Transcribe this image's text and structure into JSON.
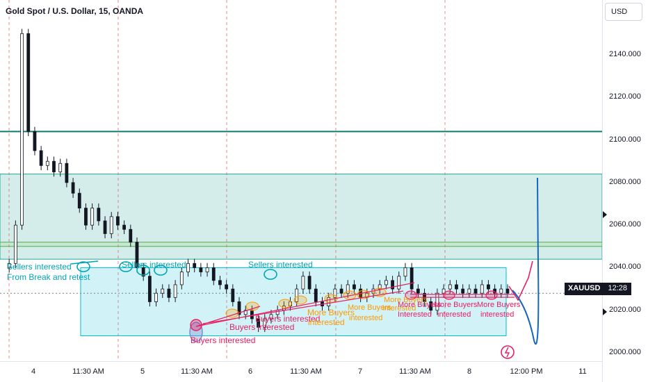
{
  "header": {
    "title": "Gold Spot / U.S. Dollar, 15, OANDA",
    "currency": "USD"
  },
  "badge": {
    "symbol": "XAUUSD",
    "value": "12:28"
  },
  "colors": {
    "candle": "#131722",
    "zone_green": "#26a69a",
    "zone_blue": "#00bcd4",
    "cyan": "#00a5b5",
    "red": "#e91e63",
    "orange": "#ff9800",
    "blue": "#1565c0",
    "teal_line": "#0c7e6e"
  },
  "chart_data": {
    "type": "candlestick",
    "title": "Gold Spot / U.S. Dollar, 15, OANDA",
    "y_axis": {
      "ticks": [
        2000,
        2020,
        2040,
        2060,
        2080,
        2100,
        2120,
        2140
      ],
      "tick_labels": [
        "2000.000",
        "2020.000",
        "2040.000",
        "2060.000",
        "2080.000",
        "2100.000",
        "2120.000",
        "2140.000"
      ],
      "range": [
        1996,
        2155
      ]
    },
    "x_axis": {
      "tick_labels": [
        "4",
        "11:30 AM",
        "5",
        "11:30 AM",
        "6",
        "11:30 AM",
        "7",
        "11:30 AM",
        "8",
        "12:00 PM",
        "11"
      ]
    },
    "horizontal_line": 2104,
    "last_price": 2028,
    "zones": [
      {
        "name": "supply",
        "from": 2044,
        "to": 2084
      },
      {
        "name": "demand",
        "from": 2008,
        "to": 2040
      }
    ],
    "price_path": [
      2040,
      2042,
      2060,
      2150,
      2104,
      2095,
      2088,
      2090,
      2085,
      2089,
      2080,
      2075,
      2068,
      2060,
      2068,
      2062,
      2056,
      2064,
      2060,
      2058,
      2052,
      2040,
      2036,
      2024,
      2028,
      2030,
      2026,
      2032,
      2038,
      2042,
      2040,
      2038,
      2040,
      2034,
      2032,
      2030,
      2024,
      2018,
      2020,
      2016,
      2012,
      2016,
      2018,
      2020,
      2022,
      2024,
      2030,
      2036,
      2030,
      2024,
      2022,
      2026,
      2030,
      2028,
      2032,
      2030,
      2026,
      2028,
      2030,
      2032,
      2034,
      2030,
      2036,
      2040,
      2030,
      2028,
      2024,
      2020,
      2028,
      2030,
      2032,
      2030,
      2028,
      2030,
      2028,
      2032,
      2030,
      2028,
      2030,
      2028
    ],
    "annotations": [
      {
        "text": "Sellers interested",
        "color": "cyan"
      },
      {
        "text": "From Break and retest",
        "color": "cyan"
      },
      {
        "text": "Sellers interested",
        "color": "cyan"
      },
      {
        "text": "Sellers interested",
        "color": "cyan"
      },
      {
        "text": "Buyers interested",
        "color": "red"
      },
      {
        "text": "Buyers interested",
        "color": "red"
      },
      {
        "text": "Buyers interested",
        "color": "red"
      },
      {
        "text": "More Buyers",
        "color": "orange"
      },
      {
        "text": "interested",
        "color": "orange"
      },
      {
        "text": "More Buyers",
        "color": "orange"
      },
      {
        "text": "interested",
        "color": "orange"
      },
      {
        "text": "More Buyers",
        "color": "orange"
      },
      {
        "text": "interested",
        "color": "orange"
      },
      {
        "text": "More Buyers",
        "color": "red"
      },
      {
        "text": "Interested",
        "color": "red"
      },
      {
        "text": "More Buyers",
        "color": "red"
      },
      {
        "text": "interested",
        "color": "red"
      },
      {
        "text": "More Buyers",
        "color": "red"
      },
      {
        "text": "interested",
        "color": "red"
      }
    ]
  }
}
